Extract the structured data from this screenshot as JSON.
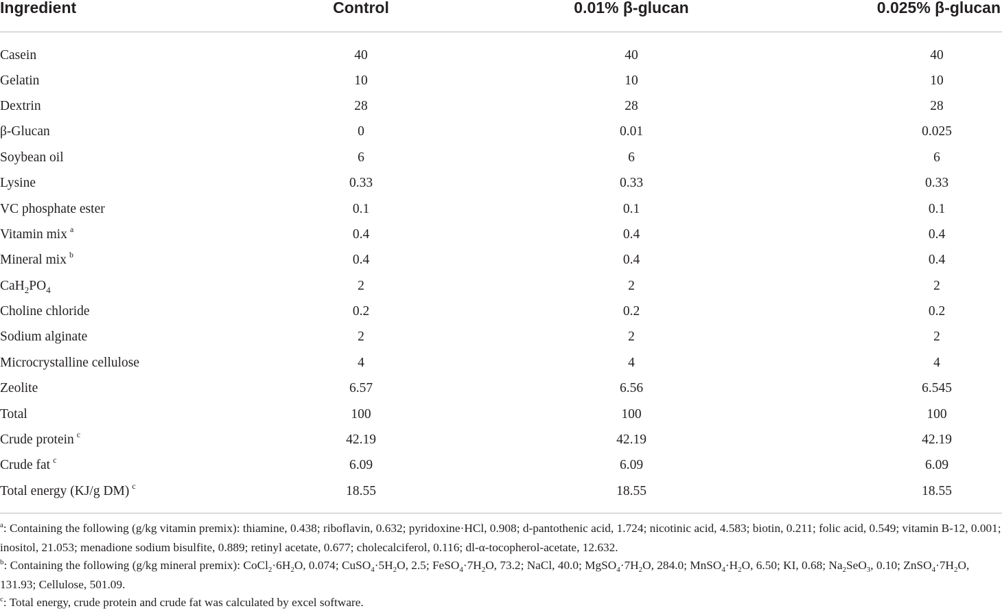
{
  "table": {
    "headers": [
      "Ingredient",
      "Control",
      "0.01% β-glucan",
      "0.025% β-glucan"
    ],
    "rows": [
      {
        "name": "Casein",
        "note": "",
        "control": "40",
        "g001": "40",
        "g0025": "40"
      },
      {
        "name": "Gelatin",
        "note": "",
        "control": "10",
        "g001": "10",
        "g0025": "10"
      },
      {
        "name": "Dextrin",
        "note": "",
        "control": "28",
        "g001": "28",
        "g0025": "28"
      },
      {
        "name": "β-Glucan",
        "note": "",
        "control": "0",
        "g001": "0.01",
        "g0025": "0.025"
      },
      {
        "name": "Soybean oil",
        "note": "",
        "control": "6",
        "g001": "6",
        "g0025": "6"
      },
      {
        "name": "Lysine",
        "note": "",
        "control": "0.33",
        "g001": "0.33",
        "g0025": "0.33"
      },
      {
        "name": "VC phosphate ester",
        "note": "",
        "control": "0.1",
        "g001": "0.1",
        "g0025": "0.1"
      },
      {
        "name": "Vitamin mix",
        "note": "a",
        "control": "0.4",
        "g001": "0.4",
        "g0025": "0.4"
      },
      {
        "name": "Mineral mix",
        "note": "b",
        "control": "0.4",
        "g001": "0.4",
        "g0025": "0.4"
      },
      {
        "name": "CaH2PO4",
        "note": "",
        "control": "2",
        "g001": "2",
        "g0025": "2"
      },
      {
        "name": "Choline chloride",
        "note": "",
        "control": "0.2",
        "g001": "0.2",
        "g0025": "0.2"
      },
      {
        "name": "Sodium alginate",
        "note": "",
        "control": "2",
        "g001": "2",
        "g0025": "2"
      },
      {
        "name": "Microcrystalline cellulose",
        "note": "",
        "control": "4",
        "g001": "4",
        "g0025": "4"
      },
      {
        "name": "Zeolite",
        "note": "",
        "control": "6.57",
        "g001": "6.56",
        "g0025": "6.545"
      },
      {
        "name": "Total",
        "note": "",
        "control": "100",
        "g001": "100",
        "g0025": "100"
      },
      {
        "name": "Crude protein",
        "note": "c",
        "control": "42.19",
        "g001": "42.19",
        "g0025": "42.19"
      },
      {
        "name": "Crude fat",
        "note": "c",
        "control": "6.09",
        "g001": "6.09",
        "g0025": "6.09"
      },
      {
        "name": "Total energy (KJ/g DM)",
        "note": "c",
        "control": "18.55",
        "g001": "18.55",
        "g0025": "18.55"
      }
    ]
  },
  "footnotes": {
    "a": ": Containing the following (g/kg vitamin premix): thiamine, 0.438; riboflavin, 0.632; pyridoxine·HCl, 0.908; d-pantothenic acid, 1.724; nicotinic acid, 4.583; biotin, 0.211; folic acid, 0.549; vitamin B-12, 0.001; inositol, 21.053; menadione sodium bisulfite, 0.889; retinyl acetate, 0.677; cholecalciferol, 0.116; dl-α-tocopherol-acetate, 12.632.",
    "b": ": Containing the following (g/kg mineral premix): CoCl2·6H2O, 0.074; CuSO4·5H2O, 2.5; FeSO4·7H2O, 73.2; NaCl, 40.0; MgSO4·7H2O, 284.0; MnSO4·H2O, 6.50; KI, 0.68; Na2SeO3, 0.10; ZnSO4·7H2O, 131.93; Cellulose, 501.09.",
    "c": ": Total energy, crude protein and crude fat was calculated by excel software."
  }
}
